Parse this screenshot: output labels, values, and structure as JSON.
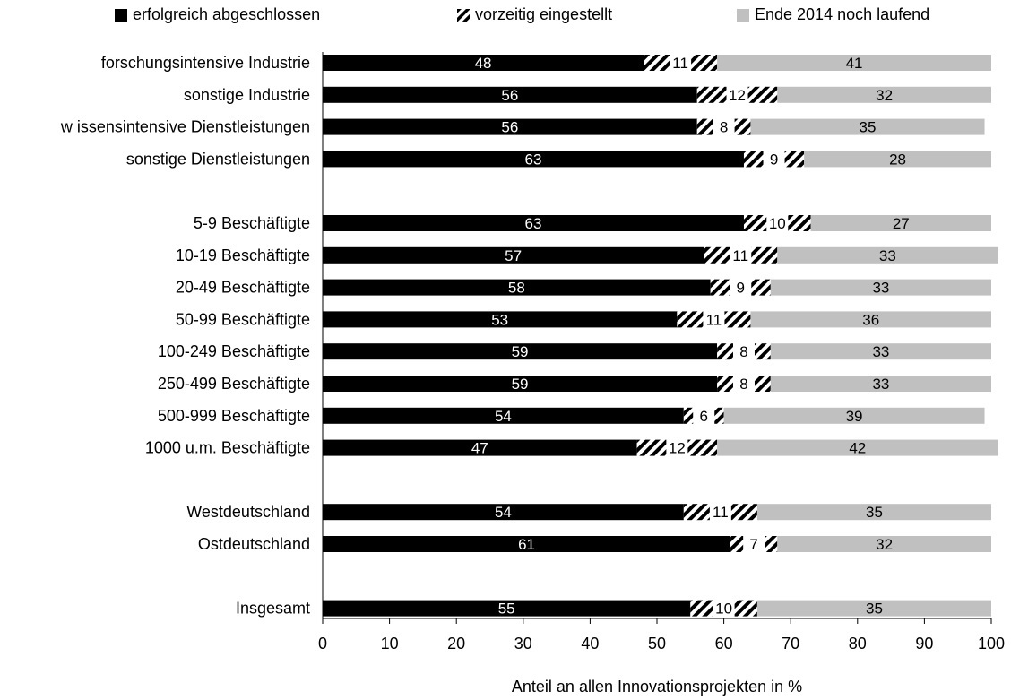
{
  "chart_data": {
    "type": "bar",
    "orientation": "horizontal",
    "stacked": true,
    "xlabel": "Anteil an allen Innovationsprojekten in %",
    "xlim": [
      0,
      100
    ],
    "xticks": [
      0,
      10,
      20,
      30,
      40,
      50,
      60,
      70,
      80,
      90,
      100
    ],
    "grid": false,
    "legend_position": "top",
    "categories": [
      "forschungsintensive Industrie",
      "sonstige Industrie",
      "w issensintensive Dienstleistungen",
      "sonstige Dienstleistungen",
      "",
      "5-9 Beschäftigte",
      "10-19 Beschäftigte",
      "20-49 Beschäftigte",
      "50-99 Beschäftigte",
      "100-249 Beschäftigte",
      "250-499 Beschäftigte",
      "500-999 Beschäftigte",
      "1000 u.m. Beschäftigte",
      "",
      "Westdeutschland",
      "Ostdeutschland",
      "",
      "Insgesamt"
    ],
    "series": [
      {
        "name": "erfolgreich abgeschlossen",
        "color": "#000000",
        "pattern": "solid",
        "values": [
          48,
          56,
          56,
          63,
          null,
          63,
          57,
          58,
          53,
          59,
          59,
          54,
          47,
          null,
          54,
          61,
          null,
          55
        ]
      },
      {
        "name": "vorzeitig eingestellt",
        "color": "#000000",
        "pattern": "diagonal-hatch",
        "values": [
          11,
          12,
          8,
          9,
          null,
          10,
          11,
          9,
          11,
          8,
          8,
          6,
          12,
          null,
          11,
          7,
          null,
          10
        ]
      },
      {
        "name": "Ende 2014 noch laufend",
        "color": "#c0c0c0",
        "pattern": "solid",
        "values": [
          41,
          32,
          35,
          28,
          null,
          27,
          33,
          33,
          36,
          33,
          33,
          39,
          42,
          null,
          35,
          32,
          null,
          35
        ]
      }
    ]
  }
}
